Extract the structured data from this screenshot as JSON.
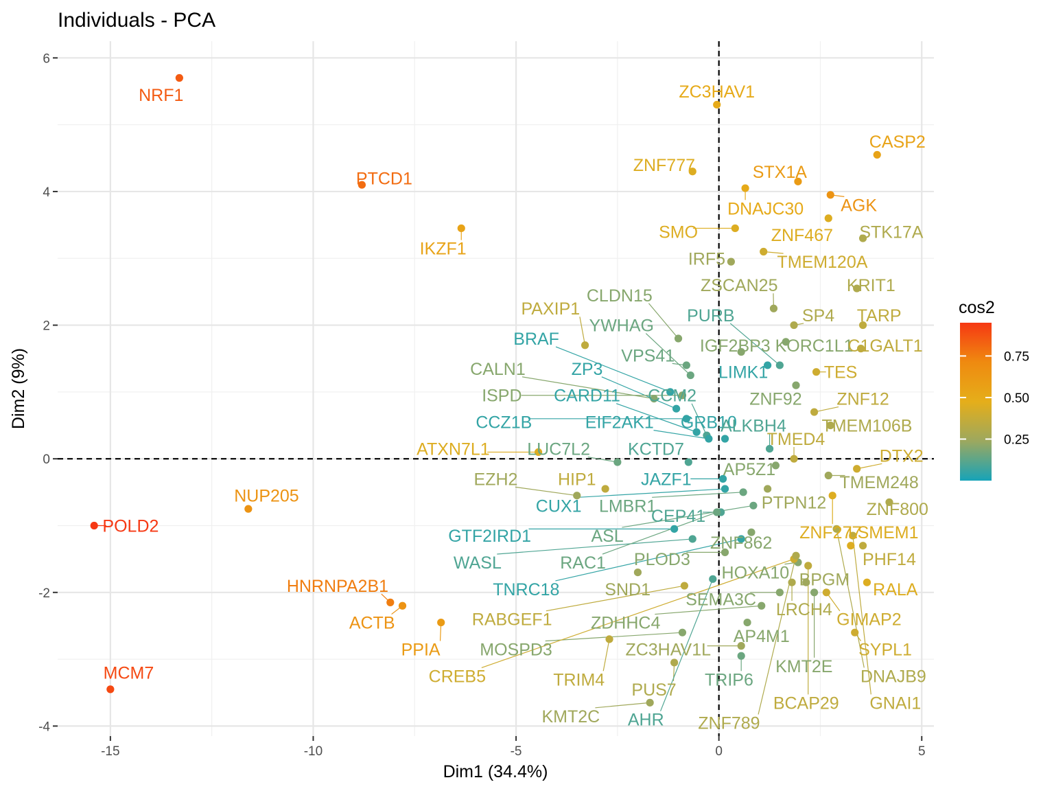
{
  "chart_data": {
    "type": "scatter",
    "title": "Individuals - PCA",
    "xlabel": "Dim1 (34.4%)",
    "ylabel": "Dim2 (9%)",
    "xlim": [
      -16.3,
      5.3
    ],
    "ylim": [
      -4.15,
      6.25
    ],
    "x_ticks": [
      -15,
      -10,
      -5,
      0,
      5
    ],
    "x_tick_labels": [
      "-15",
      "-10",
      "-5",
      "0",
      "5"
    ],
    "y_ticks": [
      -4,
      -2,
      0,
      2,
      4,
      6
    ],
    "y_tick_labels": [
      "-4",
      "-2",
      "0",
      "2",
      "4",
      "6"
    ],
    "grid": true,
    "reference_lines": {
      "x": 0,
      "y": 0,
      "style": "dashed"
    },
    "legend": {
      "title": "cos2",
      "position": "right",
      "range": [
        0.0,
        0.95
      ],
      "ticks": [
        0.25,
        0.5,
        0.75
      ],
      "tick_labels": [
        "0.25",
        "0.50",
        "0.75"
      ],
      "colors": [
        "#17A3B8",
        "#9CA85F",
        "#E5AE1A",
        "#EF8A10",
        "#F63813"
      ]
    },
    "points": [
      {
        "label": "NRF1",
        "x": -13.3,
        "y": 5.7,
        "cos2": 0.85,
        "lx": -13.75,
        "ly": 5.45
      },
      {
        "label": "PTCD1",
        "x": -8.8,
        "y": 4.1,
        "cos2": 0.8,
        "lx": -8.25,
        "ly": 4.2
      },
      {
        "label": "IKZF1",
        "x": -6.35,
        "y": 3.45,
        "cos2": 0.55,
        "lx": -6.8,
        "ly": 3.15
      },
      {
        "label": "NUP205",
        "x": -11.6,
        "y": -0.75,
        "cos2": 0.65,
        "lx": -11.15,
        "ly": -0.55
      },
      {
        "label": "POLD2",
        "x": -15.4,
        "y": -1.0,
        "cos2": 0.95,
        "lx": -14.5,
        "ly": -1.0
      },
      {
        "label": "HNRNPA2B1",
        "x": -8.1,
        "y": -2.15,
        "cos2": 0.75,
        "lx": -9.4,
        "ly": -1.9
      },
      {
        "label": "ACTB",
        "x": -7.8,
        "y": -2.2,
        "cos2": 0.65,
        "lx": -8.55,
        "ly": -2.45
      },
      {
        "label": "PPIA",
        "x": -6.85,
        "y": -2.45,
        "cos2": 0.6,
        "lx": -7.35,
        "ly": -2.85
      },
      {
        "label": "MCM7",
        "x": -15.0,
        "y": -3.45,
        "cos2": 0.9,
        "lx": -14.55,
        "ly": -3.2
      },
      {
        "label": "ZC3HAV1",
        "x": -0.05,
        "y": 5.3,
        "cos2": 0.5,
        "lx": -0.05,
        "ly": 5.5
      },
      {
        "label": "ZNF777",
        "x": -0.65,
        "y": 4.3,
        "cos2": 0.45,
        "lx": -1.35,
        "ly": 4.4
      },
      {
        "label": "STX1A",
        "x": 1.95,
        "y": 4.15,
        "cos2": 0.6,
        "lx": 1.5,
        "ly": 4.3
      },
      {
        "label": "CASP2",
        "x": 3.9,
        "y": 4.55,
        "cos2": 0.55,
        "lx": 4.4,
        "ly": 4.75
      },
      {
        "label": "DNAJC30",
        "x": 0.65,
        "y": 4.05,
        "cos2": 0.5,
        "lx": 1.15,
        "ly": 3.75
      },
      {
        "label": "AGK",
        "x": 2.75,
        "y": 3.95,
        "cos2": 0.65,
        "lx": 3.45,
        "ly": 3.8
      },
      {
        "label": "SMO",
        "x": 0.4,
        "y": 3.45,
        "cos2": 0.45,
        "lx": -1.0,
        "ly": 3.4
      },
      {
        "label": "ZNF467",
        "x": 2.7,
        "y": 3.6,
        "cos2": 0.45,
        "lx": 2.05,
        "ly": 3.35
      },
      {
        "label": "STK17A",
        "x": 3.55,
        "y": 3.3,
        "cos2": 0.3,
        "lx": 4.25,
        "ly": 3.4
      },
      {
        "label": "TMEM120A",
        "x": 1.1,
        "y": 3.1,
        "cos2": 0.4,
        "lx": 2.55,
        "ly": 2.95
      },
      {
        "label": "IRF5",
        "x": 0.3,
        "y": 2.95,
        "cos2": 0.25,
        "lx": -0.3,
        "ly": 3.0
      },
      {
        "label": "ZSCAN25",
        "x": 1.35,
        "y": 2.25,
        "cos2": 0.25,
        "lx": 0.5,
        "ly": 2.6
      },
      {
        "label": "KRIT1",
        "x": 3.4,
        "y": 2.55,
        "cos2": 0.3,
        "lx": 3.75,
        "ly": 2.6
      },
      {
        "label": "PAXIP1",
        "x": -3.3,
        "y": 1.7,
        "cos2": 0.35,
        "lx": -4.15,
        "ly": 2.25
      },
      {
        "label": "CLDN15",
        "x": -1.0,
        "y": 1.8,
        "cos2": 0.2,
        "lx": -2.45,
        "ly": 2.45
      },
      {
        "label": "PURB",
        "x": 1.5,
        "y": 1.4,
        "cos2": 0.1,
        "lx": -0.2,
        "ly": 2.15
      },
      {
        "label": "SP4",
        "x": 1.85,
        "y": 2.0,
        "cos2": 0.3,
        "lx": 2.45,
        "ly": 2.15
      },
      {
        "label": "TARP",
        "x": 3.55,
        "y": 2.0,
        "cos2": 0.35,
        "lx": 3.95,
        "ly": 2.15
      },
      {
        "label": "YWHAG",
        "x": -0.7,
        "y": 1.25,
        "cos2": 0.15,
        "lx": -2.4,
        "ly": 2.0
      },
      {
        "label": "BRAF",
        "x": -1.2,
        "y": 1.0,
        "cos2": 0.05,
        "lx": -4.5,
        "ly": 1.8
      },
      {
        "label": "IGF2BP3",
        "x": 0.55,
        "y": 1.6,
        "cos2": 0.2,
        "lx": 0.4,
        "ly": 1.7
      },
      {
        "label": "KORC1L1",
        "x": 1.65,
        "y": 1.75,
        "cos2": 0.2,
        "lx": 2.35,
        "ly": 1.7
      },
      {
        "label": "C1GALT1",
        "x": 3.5,
        "y": 1.65,
        "cos2": 0.35,
        "lx": 4.1,
        "ly": 1.7
      },
      {
        "label": "VPS41",
        "x": -0.8,
        "y": 1.4,
        "cos2": 0.15,
        "lx": -1.75,
        "ly": 1.55
      },
      {
        "label": "CALN1",
        "x": -1.6,
        "y": 0.9,
        "cos2": 0.2,
        "lx": -5.45,
        "ly": 1.35
      },
      {
        "label": "ZP3",
        "x": -1.05,
        "y": 0.75,
        "cos2": 0.05,
        "lx": -3.25,
        "ly": 1.35
      },
      {
        "label": "LIMK1",
        "x": 1.2,
        "y": 1.4,
        "cos2": 0.05,
        "lx": 0.6,
        "ly": 1.3
      },
      {
        "label": "TES",
        "x": 2.4,
        "y": 1.3,
        "cos2": 0.4,
        "lx": 3.0,
        "ly": 1.3
      },
      {
        "label": "ISPD",
        "x": -0.9,
        "y": 0.95,
        "cos2": 0.2,
        "lx": -5.35,
        "ly": 0.95
      },
      {
        "label": "CARD11",
        "x": -0.55,
        "y": 0.4,
        "cos2": 0.05,
        "lx": -3.25,
        "ly": 0.95
      },
      {
        "label": "CCM2",
        "x": -0.3,
        "y": 0.35,
        "cos2": 0.1,
        "lx": -1.15,
        "ly": 0.95
      },
      {
        "label": "ZNF92",
        "x": 1.9,
        "y": 1.1,
        "cos2": 0.2,
        "lx": 1.4,
        "ly": 0.9
      },
      {
        "label": "ZNF12",
        "x": 2.35,
        "y": 0.7,
        "cos2": 0.35,
        "lx": 3.55,
        "ly": 0.9
      },
      {
        "label": "CCZ1B",
        "x": -0.8,
        "y": 0.6,
        "cos2": 0.05,
        "lx": -5.3,
        "ly": 0.55
      },
      {
        "label": "EIF2AK1",
        "x": -0.25,
        "y": 0.3,
        "cos2": 0.05,
        "lx": -2.45,
        "ly": 0.55
      },
      {
        "label": "GRB10",
        "x": 0.15,
        "y": 0.3,
        "cos2": 0.05,
        "lx": -0.25,
        "ly": 0.55
      },
      {
        "label": "ALKBH4",
        "x": 1.25,
        "y": 0.15,
        "cos2": 0.1,
        "lx": 0.85,
        "ly": 0.5
      },
      {
        "label": "TMEM106B",
        "x": 2.75,
        "y": 0.5,
        "cos2": 0.3,
        "lx": 3.65,
        "ly": 0.5
      },
      {
        "label": "TMED4",
        "x": 1.85,
        "y": 0.0,
        "cos2": 0.35,
        "lx": 1.9,
        "ly": 0.3
      },
      {
        "label": "ATXN7L1",
        "x": -4.45,
        "y": 0.1,
        "cos2": 0.45,
        "lx": -6.55,
        "ly": 0.15
      },
      {
        "label": "LUC7L2",
        "x": -2.5,
        "y": -0.05,
        "cos2": 0.15,
        "lx": -3.95,
        "ly": 0.15
      },
      {
        "label": "KCTD7",
        "x": -0.75,
        "y": -0.05,
        "cos2": 0.1,
        "lx": -1.55,
        "ly": 0.15
      },
      {
        "label": "AP5Z1",
        "x": 1.4,
        "y": -0.1,
        "cos2": 0.2,
        "lx": 0.75,
        "ly": -0.15
      },
      {
        "label": "DTX2",
        "x": 3.4,
        "y": -0.15,
        "cos2": 0.4,
        "lx": 4.5,
        "ly": 0.05
      },
      {
        "label": "EZH2",
        "x": -3.5,
        "y": -0.55,
        "cos2": 0.25,
        "lx": -5.5,
        "ly": -0.3
      },
      {
        "label": "HIP1",
        "x": -2.8,
        "y": -0.45,
        "cos2": 0.35,
        "lx": -3.5,
        "ly": -0.3
      },
      {
        "label": "JAZF1",
        "x": 0.1,
        "y": -0.3,
        "cos2": 0.05,
        "lx": -1.3,
        "ly": -0.3
      },
      {
        "label": "TMEM248",
        "x": 2.7,
        "y": -0.25,
        "cos2": 0.25,
        "lx": 3.95,
        "ly": -0.35
      },
      {
        "label": "CUX1",
        "x": 0.15,
        "y": -0.45,
        "cos2": 0.05,
        "lx": -3.95,
        "ly": -0.7
      },
      {
        "label": "LMBR1",
        "x": 0.6,
        "y": -0.5,
        "cos2": 0.15,
        "lx": -2.25,
        "ly": -0.7
      },
      {
        "label": "PTPN12",
        "x": 1.2,
        "y": -0.45,
        "cos2": 0.25,
        "lx": 1.85,
        "ly": -0.65
      },
      {
        "label": "ZNF800",
        "x": 4.2,
        "y": -0.65,
        "cos2": 0.3,
        "lx": 4.4,
        "ly": -0.75
      },
      {
        "label": "CEP41",
        "x": 0.05,
        "y": -0.8,
        "cos2": 0.1,
        "lx": -1.0,
        "ly": -0.85
      },
      {
        "label": "GTF2IRD1",
        "x": -1.1,
        "y": -1.05,
        "cos2": 0.05,
        "lx": -5.65,
        "ly": -1.15
      },
      {
        "label": "ASL",
        "x": 0.85,
        "y": -0.7,
        "cos2": 0.15,
        "lx": -2.75,
        "ly": -1.15
      },
      {
        "label": "ZNF277",
        "x": 2.8,
        "y": -0.55,
        "cos2": 0.45,
        "lx": 2.75,
        "ly": -1.1
      },
      {
        "label": "LSMEM1",
        "x": 3.25,
        "y": -1.3,
        "cos2": 0.45,
        "lx": 4.05,
        "ly": -1.1
      },
      {
        "label": "ZNF862",
        "x": 0.8,
        "y": -1.1,
        "cos2": 0.2,
        "lx": 0.55,
        "ly": -1.25
      },
      {
        "label": "WASL",
        "x": -0.65,
        "y": -1.2,
        "cos2": 0.1,
        "lx": -5.95,
        "ly": -1.55
      },
      {
        "label": "RAC1",
        "x": -0.05,
        "y": -0.8,
        "cos2": 0.15,
        "lx": -3.35,
        "ly": -1.55
      },
      {
        "label": "PLOD3",
        "x": 0.15,
        "y": -1.4,
        "cos2": 0.2,
        "lx": -1.4,
        "ly": -1.5
      },
      {
        "label": "PHF14",
        "x": 3.55,
        "y": -1.3,
        "cos2": 0.35,
        "lx": 4.2,
        "ly": -1.5
      },
      {
        "label": "HOXA10",
        "x": 1.95,
        "y": -1.55,
        "cos2": 0.2,
        "lx": 0.9,
        "ly": -1.7
      },
      {
        "label": "TNRC18",
        "x": 0.55,
        "y": -1.2,
        "cos2": 0.05,
        "lx": -4.75,
        "ly": -1.95
      },
      {
        "label": "SND1",
        "x": -2.0,
        "y": -1.7,
        "cos2": 0.25,
        "lx": -2.25,
        "ly": -1.95
      },
      {
        "label": "BPGM",
        "x": 2.15,
        "y": -1.85,
        "cos2": 0.25,
        "lx": 2.6,
        "ly": -1.8
      },
      {
        "label": "RALA",
        "x": 3.65,
        "y": -1.85,
        "cos2": 0.45,
        "lx": 4.35,
        "ly": -1.95
      },
      {
        "label": "SEMA3C",
        "x": 1.5,
        "y": -2.0,
        "cos2": 0.2,
        "lx": 0.05,
        "ly": -2.1
      },
      {
        "label": "LRCH4",
        "x": 1.8,
        "y": -1.85,
        "cos2": 0.3,
        "lx": 2.1,
        "ly": -2.25
      },
      {
        "label": "RABGEF1",
        "x": -0.85,
        "y": -1.9,
        "cos2": 0.35,
        "lx": -5.1,
        "ly": -2.4
      },
      {
        "label": "ZDHHC4",
        "x": 1.05,
        "y": -2.2,
        "cos2": 0.2,
        "lx": -2.3,
        "ly": -2.45
      },
      {
        "label": "GIMAP2",
        "x": 2.65,
        "y": -2.0,
        "cos2": 0.4,
        "lx": 3.7,
        "ly": -2.4
      },
      {
        "label": "AP4M1",
        "x": 0.7,
        "y": -2.45,
        "cos2": 0.2,
        "lx": 1.05,
        "ly": -2.65
      },
      {
        "label": "MOSPD3",
        "x": -0.9,
        "y": -2.6,
        "cos2": 0.2,
        "lx": -5.0,
        "ly": -2.85
      },
      {
        "label": "ZC3HAV1L",
        "x": 0.55,
        "y": -2.8,
        "cos2": 0.25,
        "lx": -1.25,
        "ly": -2.85
      },
      {
        "label": "SYPL1",
        "x": 3.35,
        "y": -2.6,
        "cos2": 0.4,
        "lx": 4.1,
        "ly": -2.85
      },
      {
        "label": "KMT2E",
        "x": 2.35,
        "y": -2.0,
        "cos2": 0.2,
        "lx": 2.1,
        "ly": -3.1
      },
      {
        "label": "CREB5",
        "x": 1.85,
        "y": -1.5,
        "cos2": 0.4,
        "lx": -6.45,
        "ly": -3.25
      },
      {
        "label": "TRIM4",
        "x": -2.7,
        "y": -2.7,
        "cos2": 0.35,
        "lx": -3.45,
        "ly": -3.3
      },
      {
        "label": "TRIP6",
        "x": 0.55,
        "y": -2.95,
        "cos2": 0.15,
        "lx": 0.25,
        "ly": -3.3
      },
      {
        "label": "DNAJB9",
        "x": 2.9,
        "y": -1.05,
        "cos2": 0.3,
        "lx": 4.3,
        "ly": -3.25
      },
      {
        "label": "PUS7",
        "x": -1.1,
        "y": -3.05,
        "cos2": 0.3,
        "lx": -1.6,
        "ly": -3.45
      },
      {
        "label": "BCAP29",
        "x": 2.2,
        "y": -1.6,
        "cos2": 0.35,
        "lx": 2.15,
        "ly": -3.65
      },
      {
        "label": "GNAI1",
        "x": 3.3,
        "y": -1.15,
        "cos2": 0.35,
        "lx": 4.35,
        "ly": -3.65
      },
      {
        "label": "KMT2C",
        "x": -1.7,
        "y": -3.65,
        "cos2": 0.25,
        "lx": -3.65,
        "ly": -3.85
      },
      {
        "label": "AHR",
        "x": -0.15,
        "y": -1.8,
        "cos2": 0.1,
        "lx": -1.8,
        "ly": -3.9
      },
      {
        "label": "ZNF789",
        "x": 1.9,
        "y": -1.45,
        "cos2": 0.3,
        "lx": 0.25,
        "ly": -3.95
      }
    ]
  }
}
